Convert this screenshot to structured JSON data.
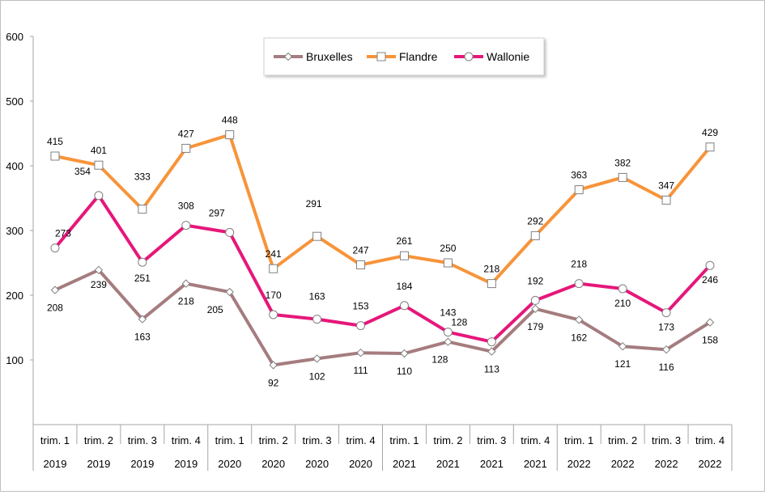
{
  "chart_data": {
    "type": "line",
    "title": "",
    "xlabel": "",
    "ylabel": "",
    "ylim": [
      0,
      600
    ],
    "yticks": [
      "100",
      "200",
      "300",
      "400",
      "500",
      "600"
    ],
    "grid": false,
    "legend_position": "top",
    "categories": [
      {
        "quarter": "trim. 1",
        "year": "2019"
      },
      {
        "quarter": "trim. 2",
        "year": "2019"
      },
      {
        "quarter": "trim. 3",
        "year": "2019"
      },
      {
        "quarter": "trim. 4",
        "year": "2019"
      },
      {
        "quarter": "trim. 1",
        "year": "2020"
      },
      {
        "quarter": "trim. 2",
        "year": "2020"
      },
      {
        "quarter": "trim. 3",
        "year": "2020"
      },
      {
        "quarter": "trim. 4",
        "year": "2020"
      },
      {
        "quarter": "trim. 1",
        "year": "2021"
      },
      {
        "quarter": "trim. 2",
        "year": "2021"
      },
      {
        "quarter": "trim. 3",
        "year": "2021"
      },
      {
        "quarter": "trim. 4",
        "year": "2021"
      },
      {
        "quarter": "trim. 1",
        "year": "2022"
      },
      {
        "quarter": "trim. 2",
        "year": "2022"
      },
      {
        "quarter": "trim. 3",
        "year": "2022"
      },
      {
        "quarter": "trim. 4",
        "year": "2022"
      }
    ],
    "series": [
      {
        "name": "Bruxelles",
        "color": "#a57c7f",
        "marker": "diamond",
        "values": [
          208,
          239,
          163,
          218,
          205,
          92,
          102,
          111,
          110,
          128,
          113,
          179,
          162,
          121,
          116,
          158
        ]
      },
      {
        "name": "Flandre",
        "color": "#f7943a",
        "marker": "square",
        "values": [
          415,
          401,
          333,
          427,
          448,
          241,
          291,
          247,
          261,
          250,
          218,
          292,
          363,
          382,
          347,
          429
        ]
      },
      {
        "name": "Wallonie",
        "color": "#e6177a",
        "marker": "circle",
        "values": [
          273,
          354,
          251,
          308,
          297,
          170,
          163,
          153,
          184,
          143,
          128,
          192,
          218,
          210,
          173,
          246
        ]
      }
    ]
  }
}
